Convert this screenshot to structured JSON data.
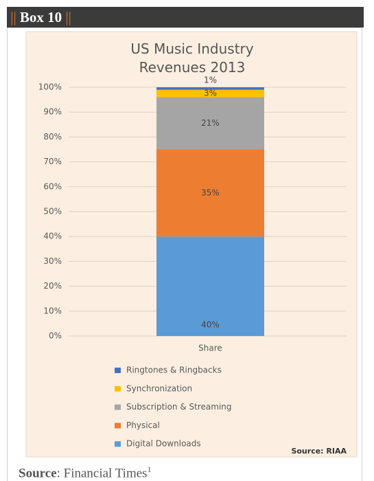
{
  "box_marker": "||",
  "box_title": "Box 10",
  "chart_data": {
    "type": "stacked_bar",
    "title": "US Music Industry Revenues 2013",
    "categories": [
      "Share"
    ],
    "series": [
      {
        "name": "Digital Downloads",
        "color": "#5b9bd5",
        "values": [
          40
        ],
        "value_labels": [
          "40%"
        ]
      },
      {
        "name": "Physical",
        "color": "#ed7d31",
        "values": [
          35
        ],
        "value_labels": [
          "35%"
        ]
      },
      {
        "name": "Subscription & Streaming",
        "color": "#a5a5a5",
        "values": [
          21
        ],
        "value_labels": [
          "21%"
        ]
      },
      {
        "name": "Synchronization",
        "color": "#ffc000",
        "values": [
          3
        ],
        "value_labels": [
          "3%"
        ]
      },
      {
        "name": "Ringtones & Ringbacks",
        "color": "#4472c4",
        "values": [
          1
        ],
        "value_labels": [
          "1%"
        ]
      }
    ],
    "ylim": [
      0,
      100
    ],
    "yticks": [
      {
        "value": 0,
        "label": "0%"
      },
      {
        "value": 10,
        "label": "10%"
      },
      {
        "value": 20,
        "label": "20%"
      },
      {
        "value": 30,
        "label": "30%"
      },
      {
        "value": 40,
        "label": "40%"
      },
      {
        "value": 50,
        "label": "50%"
      },
      {
        "value": 60,
        "label": "60%"
      },
      {
        "value": 70,
        "label": "70%"
      },
      {
        "value": 80,
        "label": "80%"
      },
      {
        "value": 90,
        "label": "90%"
      },
      {
        "value": 100,
        "label": "100%"
      }
    ],
    "grid": true,
    "legend": "bottom",
    "annotation": "Source: RIAA"
  },
  "source_label": "Source",
  "source_text": ": Financial Times",
  "source_note": "1"
}
